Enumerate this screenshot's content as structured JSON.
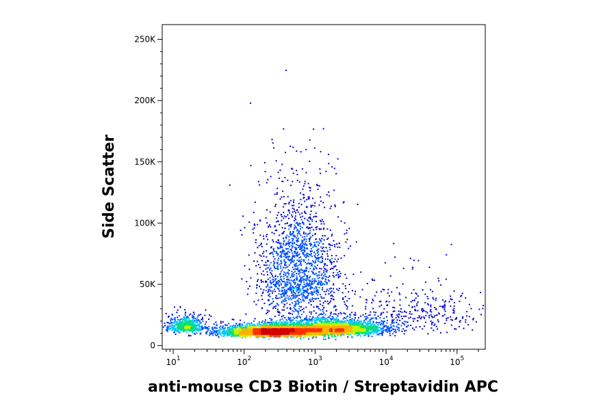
{
  "chart_data": {
    "type": "scatter",
    "style": "flow-cytometry pseudocolor density dot plot",
    "xlabel": "anti-mouse CD3 Biotin / Streptavidin APC",
    "ylabel": "Side Scatter",
    "x_scale": "log",
    "xlim": [
      7,
      250000
    ],
    "ylim": [
      -3000,
      262000
    ],
    "x_ticks": [
      {
        "base": "10",
        "exp": "1",
        "value": 10
      },
      {
        "base": "10",
        "exp": "2",
        "value": 100
      },
      {
        "base": "10",
        "exp": "3",
        "value": 1000
      },
      {
        "base": "10",
        "exp": "4",
        "value": 10000
      },
      {
        "base": "10",
        "exp": "5",
        "value": 100000
      }
    ],
    "y_ticks": [
      {
        "label": "0",
        "value": 0
      },
      {
        "label": "50K",
        "value": 50000
      },
      {
        "label": "100K",
        "value": 100000
      },
      {
        "label": "150K",
        "value": 150000
      },
      {
        "label": "200K",
        "value": 200000
      },
      {
        "label": "250K",
        "value": 250000
      }
    ],
    "populations": [
      {
        "center_x": 250,
        "center_y": 11000,
        "spread_logx": 0.35,
        "spread_y": 4000,
        "weight": 0.42
      },
      {
        "center_x": 1800,
        "center_y": 13000,
        "spread_logx": 0.35,
        "spread_y": 5500,
        "weight": 0.3
      },
      {
        "center_x": 550,
        "center_y": 55000,
        "spread_logx": 0.28,
        "spread_y": 45000,
        "weight": 0.18
      },
      {
        "center_x": 15,
        "center_y": 15000,
        "spread_logx": 0.15,
        "spread_y": 6000,
        "weight": 0.06
      },
      {
        "center_x": 20000,
        "center_y": 25000,
        "spread_logx": 0.6,
        "spread_y": 20000,
        "weight": 0.04
      }
    ],
    "colormap": [
      "#0000cc",
      "#0050ff",
      "#00c8ff",
      "#00e070",
      "#c8f000",
      "#ffb000",
      "#ff3000",
      "#d00000"
    ]
  }
}
